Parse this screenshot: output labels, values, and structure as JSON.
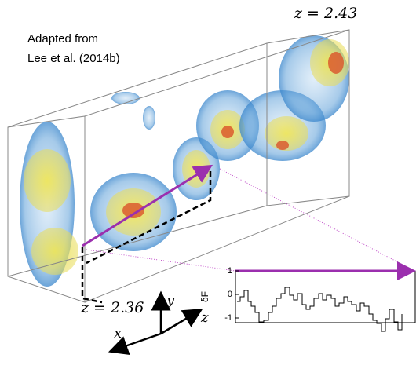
{
  "figure": {
    "credit": [
      "Adapted from",
      "Lee et al. (2014b)"
    ],
    "z_far": "z = 2.43",
    "z_near": "z = 2.36",
    "axes": {
      "y": "y",
      "x": "x",
      "z": "z"
    },
    "inset": {
      "ylabel": "δF",
      "ylim": [
        -1.2,
        1
      ],
      "yticks": [
        1,
        0,
        -1
      ]
    }
  }
}
